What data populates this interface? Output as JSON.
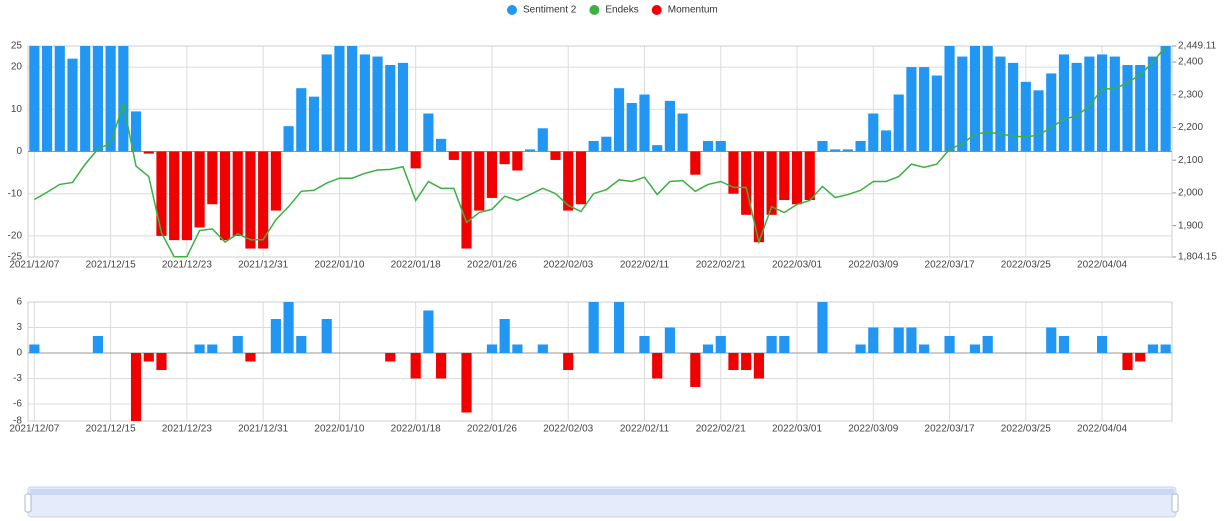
{
  "chart_data": [
    {
      "type": "bar",
      "categories": [
        "2021/12/07",
        null,
        null,
        null,
        null,
        null,
        "2021/12/15",
        null,
        null,
        null,
        null,
        null,
        "2021/12/23",
        null,
        null,
        null,
        null,
        null,
        "2021/12/31",
        null,
        null,
        null,
        null,
        null,
        "2022/01/10",
        null,
        null,
        null,
        null,
        null,
        "2022/01/18",
        null,
        null,
        null,
        null,
        null,
        "2022/01/26",
        null,
        null,
        null,
        null,
        null,
        "2022/02/03",
        null,
        null,
        null,
        null,
        null,
        "2022/02/11",
        null,
        null,
        null,
        null,
        null,
        "2022/02/21",
        null,
        null,
        null,
        null,
        null,
        "2022/03/01",
        null,
        null,
        null,
        null,
        null,
        "2022/03/09",
        null,
        null,
        null,
        null,
        null,
        "2022/03/17",
        null,
        null,
        null,
        null,
        null,
        "2022/03/25",
        null,
        null,
        null,
        null,
        null,
        "2022/04/04",
        null,
        null,
        null,
        null,
        null
      ],
      "series": [
        {
          "name": "Sentiment 2",
          "type": "bar",
          "color": "#2196f3",
          "negative_color": "#f00000",
          "values": [
            25,
            25,
            25,
            22,
            25,
            25,
            25,
            25,
            9.5,
            -0.5,
            -20,
            -21,
            -21,
            -18,
            -12.5,
            -21,
            -20,
            -23,
            -23,
            -14,
            6,
            15,
            13,
            23,
            25,
            25,
            23,
            22.5,
            20.5,
            21,
            -4,
            9,
            3,
            -2,
            -23,
            -14,
            -11,
            -3,
            -4.5,
            0.5,
            5.5,
            -2,
            -14,
            -12.5,
            2.5,
            3.5,
            15,
            11.5,
            13.5,
            1.5,
            12,
            9,
            -5.5,
            2.5,
            2.5,
            -10,
            -15,
            -21.5,
            -15,
            -11.5,
            -12.5,
            -11.5,
            2.5,
            0.5,
            0.5,
            2.5,
            9,
            5,
            13.5,
            20,
            20,
            18,
            25,
            22.5,
            25,
            25,
            22.5,
            21,
            16.5,
            14.5,
            18.5,
            23,
            21,
            22.5,
            23,
            22.5,
            20.5,
            20.5,
            22.5,
            25
          ]
        },
        {
          "name": "Endeks",
          "type": "line",
          "axis": "y2",
          "color": "#3cb043",
          "values": [
            1980,
            2002,
            2026,
            2032,
            2088,
            2134,
            2152,
            2272,
            2082,
            2050,
            1878,
            1805,
            1805,
            1885,
            1890,
            1850,
            1875,
            1857,
            1857,
            1918,
            1958,
            2005,
            2008,
            2030,
            2045,
            2045,
            2060,
            2070,
            2072,
            2080,
            1977,
            2035,
            2014,
            2014,
            1910,
            1940,
            1950,
            1990,
            1977,
            1995,
            2014,
            1998,
            1962,
            1943,
            1998,
            2010,
            2040,
            2035,
            2048,
            1995,
            2035,
            2038,
            2005,
            2026,
            2035,
            2017,
            2017,
            1850,
            1958,
            1940,
            1965,
            1977,
            2020,
            1986,
            1995,
            2008,
            2035,
            2035,
            2050,
            2088,
            2078,
            2088,
            2134,
            2150,
            2180,
            2186,
            2180,
            2174,
            2171,
            2177,
            2200,
            2226,
            2235,
            2266,
            2318,
            2318,
            2337,
            2361,
            2400,
            2448
          ]
        }
      ],
      "ylim": [
        -25,
        25
      ],
      "yticks": [
        -25,
        -20,
        -10,
        0,
        10,
        20,
        25
      ],
      "y2lim": [
        1804.15,
        2449.11
      ],
      "y2ticks": [
        {
          "value": 1804.15,
          "label": "1,804.15"
        },
        {
          "value": 1900,
          "label": "1,900"
        },
        {
          "value": 2000,
          "label": "2,000"
        },
        {
          "value": 2100,
          "label": "2,100"
        },
        {
          "value": 2200,
          "label": "2,200"
        },
        {
          "value": 2300,
          "label": "2,300"
        },
        {
          "value": 2400,
          "label": "2,400"
        },
        {
          "value": 2449.11,
          "label": "2,449.11"
        }
      ],
      "grid": true
    },
    {
      "type": "bar",
      "categories": [
        "2021/12/07",
        null,
        null,
        null,
        null,
        null,
        "2021/12/15",
        null,
        null,
        null,
        null,
        null,
        "2021/12/23",
        null,
        null,
        null,
        null,
        null,
        "2021/12/31",
        null,
        null,
        null,
        null,
        null,
        "2022/01/10",
        null,
        null,
        null,
        null,
        null,
        "2022/01/18",
        null,
        null,
        null,
        null,
        null,
        "2022/01/26",
        null,
        null,
        null,
        null,
        null,
        "2022/02/03",
        null,
        null,
        null,
        null,
        null,
        "2022/02/11",
        null,
        null,
        null,
        null,
        null,
        "2022/02/21",
        null,
        null,
        null,
        null,
        null,
        "2022/03/01",
        null,
        null,
        null,
        null,
        null,
        "2022/03/09",
        null,
        null,
        null,
        null,
        null,
        "2022/03/17",
        null,
        null,
        null,
        null,
        null,
        "2022/03/25",
        null,
        null,
        null,
        null,
        null,
        "2022/04/04",
        null,
        null,
        null,
        null,
        null
      ],
      "series": [
        {
          "name": "Momentum",
          "type": "bar",
          "color": "#f00000",
          "positive_color": "#2196f3",
          "values": [
            1,
            0,
            0,
            0,
            0,
            2,
            0,
            0,
            -8,
            -1,
            -2,
            0,
            0,
            1,
            1,
            0,
            2,
            -1,
            0,
            4,
            6,
            2,
            0,
            4,
            0,
            0,
            0,
            0,
            -1,
            0,
            -3,
            5,
            -3,
            0,
            -7,
            0,
            1,
            4,
            1,
            0,
            1,
            0,
            -2,
            0,
            6,
            0,
            6,
            0,
            2,
            -3,
            3,
            0,
            -4,
            1,
            2,
            -2,
            -2,
            -3,
            2,
            2,
            0,
            0,
            6,
            0,
            0,
            1,
            3,
            0,
            3,
            3,
            1,
            0,
            2,
            0,
            1,
            2,
            0,
            0,
            0,
            0,
            3,
            2,
            0,
            0,
            2,
            0,
            -2,
            -1,
            1,
            1
          ]
        }
      ],
      "ylim": [
        -8,
        6
      ],
      "yticks": [
        -8,
        -6,
        -3,
        0,
        3,
        6
      ],
      "grid": true
    }
  ]
}
